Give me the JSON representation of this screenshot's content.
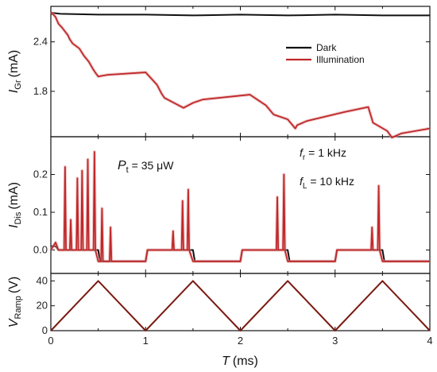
{
  "chart_data": [
    {
      "type": "line",
      "ylabel": "I",
      "ylabel_sub": "Gr",
      "ylabel_unit": "(mA)",
      "xlim": [
        0,
        4
      ],
      "ylim": [
        1.25,
        2.83
      ],
      "yticks": [
        1.8,
        2.4
      ],
      "legend": {
        "position": "top-right",
        "entries": [
          "Dark",
          "Illumination"
        ]
      },
      "colors": {
        "Dark": "#111111",
        "Illumination": "#c0282a"
      },
      "series": [
        {
          "name": "Dark",
          "x": [
            0,
            0.02,
            0.1,
            0.5,
            1.0,
            1.5,
            2.0,
            2.5,
            3.0,
            3.5,
            4.0
          ],
          "y": [
            2.73,
            2.75,
            2.74,
            2.73,
            2.73,
            2.72,
            2.73,
            2.72,
            2.73,
            2.72,
            2.72
          ]
        },
        {
          "name": "Illumination",
          "x": [
            0,
            0.02,
            0.05,
            0.08,
            0.12,
            0.18,
            0.2,
            0.23,
            0.3,
            0.35,
            0.4,
            0.45,
            0.48,
            0.5,
            0.6,
            1.0,
            1.12,
            1.17,
            1.2,
            1.4,
            1.5,
            1.6,
            2.1,
            2.27,
            2.35,
            2.5,
            2.58,
            2.6,
            2.7,
            3.1,
            3.35,
            3.4,
            3.55,
            3.6,
            3.7,
            4.0
          ],
          "y": [
            2.76,
            2.74,
            2.7,
            2.62,
            2.57,
            2.48,
            2.43,
            2.38,
            2.32,
            2.23,
            2.16,
            2.06,
            2.01,
            1.98,
            2.0,
            2.03,
            1.88,
            1.77,
            1.72,
            1.6,
            1.66,
            1.7,
            1.76,
            1.63,
            1.52,
            1.46,
            1.35,
            1.39,
            1.44,
            1.55,
            1.61,
            1.42,
            1.32,
            1.24,
            1.29,
            1.35
          ]
        }
      ]
    },
    {
      "type": "line",
      "ylabel": "I",
      "ylabel_sub": "Dis",
      "ylabel_unit": "(mA)",
      "xlim": [
        0,
        4
      ],
      "ylim": [
        -0.062,
        0.3
      ],
      "yticks": [
        0.0,
        0.1,
        0.2
      ],
      "ytick_labels": [
        "0.0",
        "0.1",
        "0.2"
      ],
      "annotations": [
        {
          "text_main": "P",
          "text_sub": "t",
          "text_rest": " = 35 μW"
        },
        {
          "text_main": "f",
          "text_sub": "r",
          "text_rest": " = 1 kHz"
        },
        {
          "text_main": "f",
          "text_sub": "L",
          "text_rest": " = 10 kHz"
        }
      ],
      "colors": {
        "Dark": "#111111",
        "Illumination": "#c0282a"
      },
      "series": [
        {
          "name": "Dark",
          "x": [
            0,
            0.05,
            0.08,
            0.5,
            0.52,
            1.0,
            1.02,
            1.5,
            1.52,
            2.0,
            2.02,
            2.5,
            2.52,
            3.0,
            3.02,
            3.5,
            3.52,
            4.0
          ],
          "y": [
            0.01,
            0.01,
            0.0,
            0.0,
            -0.03,
            -0.03,
            0.0,
            0.0,
            -0.03,
            -0.03,
            0.0,
            0.0,
            -0.03,
            -0.03,
            0.0,
            0.0,
            -0.03,
            -0.03
          ]
        },
        {
          "name": "Illumination",
          "x": [
            0,
            0.05,
            0.08,
            0.14,
            0.15,
            0.16,
            0.2,
            0.21,
            0.22,
            0.27,
            0.28,
            0.29,
            0.32,
            0.33,
            0.34,
            0.38,
            0.39,
            0.4,
            0.45,
            0.46,
            0.47,
            0.5,
            0.53,
            0.54,
            0.55,
            0.62,
            0.63,
            0.64,
            1.0,
            1.02,
            1.28,
            1.29,
            1.3,
            1.38,
            1.39,
            1.4,
            1.44,
            1.45,
            1.46,
            1.5,
            1.52,
            2.0,
            2.02,
            2.38,
            2.39,
            2.4,
            2.45,
            2.46,
            2.47,
            2.5,
            2.52,
            3.0,
            3.02,
            3.38,
            3.39,
            3.4,
            3.45,
            3.46,
            3.47,
            3.5,
            3.52,
            4.0
          ],
          "y": [
            0.0,
            0.02,
            0.0,
            0.0,
            0.22,
            0.0,
            0.0,
            0.08,
            0.0,
            0.0,
            0.19,
            0.0,
            0.0,
            0.21,
            0.0,
            0.0,
            0.24,
            0.0,
            0.0,
            0.26,
            0.0,
            -0.03,
            -0.03,
            0.11,
            -0.03,
            -0.03,
            0.06,
            -0.03,
            -0.03,
            0.0,
            0.0,
            0.05,
            0.0,
            0.0,
            0.13,
            0.0,
            0.0,
            0.16,
            0.0,
            -0.03,
            -0.03,
            -0.03,
            0.0,
            0.0,
            0.14,
            0.0,
            0.0,
            0.2,
            0.0,
            -0.03,
            -0.03,
            -0.03,
            0.0,
            0.0,
            0.06,
            0.0,
            0.0,
            0.17,
            0.0,
            -0.03,
            -0.03,
            -0.03
          ]
        }
      ]
    },
    {
      "type": "line",
      "ylabel": "V",
      "ylabel_sub": "Ramp",
      "ylabel_unit": "(V)",
      "xlabel": "T",
      "xlabel_unit": "(ms)",
      "xlim": [
        0,
        4
      ],
      "ylim": [
        0,
        46
      ],
      "yticks": [
        0,
        20,
        40
      ],
      "xticks": [
        0,
        1,
        2,
        3,
        4
      ],
      "colors": {
        "Ramp": "#7a1a12"
      },
      "series": [
        {
          "name": "",
          "x": [
            0,
            0.5,
            1.0,
            1.5,
            2.0,
            2.5,
            3.0,
            3.5,
            4.0
          ],
          "y": [
            0,
            40,
            0,
            40,
            0,
            40,
            0,
            40,
            0
          ]
        }
      ]
    }
  ]
}
